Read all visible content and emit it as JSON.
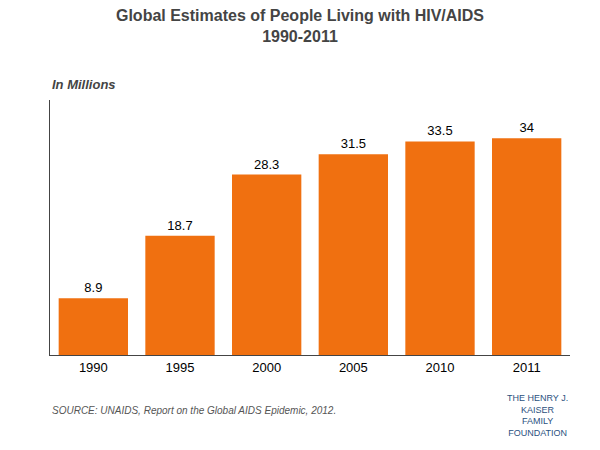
{
  "chart_data": {
    "type": "bar",
    "title": "Global Estimates of People Living with HIV/AIDS\n1990-2011",
    "subtitle": "In Millions",
    "categories": [
      "1990",
      "1995",
      "2000",
      "2005",
      "2010",
      "2011"
    ],
    "values": [
      8.9,
      18.7,
      28.3,
      31.5,
      33.5,
      34.0
    ],
    "color": "#F07010",
    "ylim": [
      0,
      40
    ],
    "grid": false,
    "data_labels": true,
    "tick_labels": "x",
    "annotations": [
      "SOURCE: UNAIDS, Report on the Global AIDS Epidemic, 2012.",
      "THE HENRY J.",
      "KAISER",
      "FAMILY",
      "FOUNDATION"
    ]
  }
}
